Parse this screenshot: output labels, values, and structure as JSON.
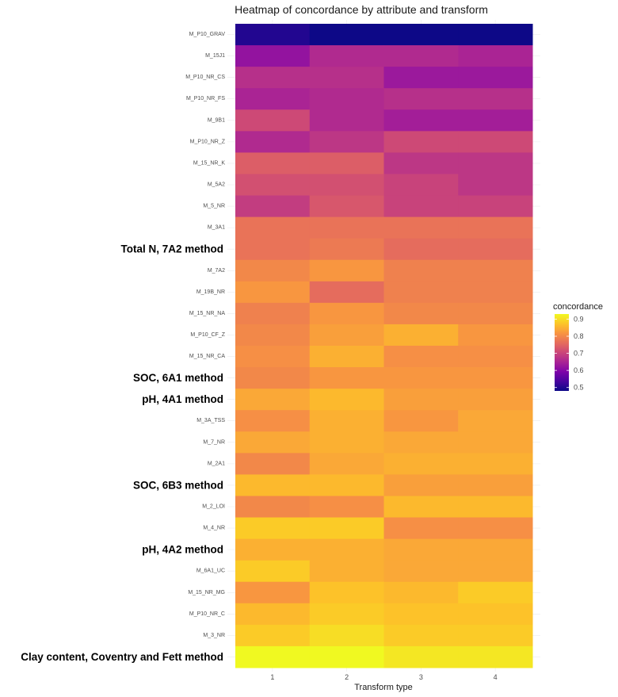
{
  "chart_data": {
    "type": "heatmap",
    "title": "Heatmap of concordance by attribute and transform",
    "xlabel": "Transform type",
    "ylabel": "",
    "x_categories": [
      "1",
      "2",
      "3",
      "4"
    ],
    "y_categories": [
      "M_P10_GRAV",
      "M_15J1",
      "M_P10_NR_CS",
      "M_P10_NR_FS",
      "M_9B1",
      "M_P10_NR_Z",
      "M_15_NR_K",
      "M_5A2",
      "M_5_NR",
      "M_3A1",
      "Total N, 7A2 method",
      "M_7A2",
      "M_19B_NR",
      "M_15_NR_NA",
      "M_P10_CF_Z",
      "M_15_NR_CA",
      "SOC, 6A1 method",
      "pH, 4A1 method",
      "M_3A_TSS",
      "M_7_NR",
      "M_2A1",
      "SOC, 6B3 method",
      "M_2_LOI",
      "M_4_NR",
      "pH, 4A2 method",
      "M_6A1_UC",
      "M_15_NR_MG",
      "M_P10_NR_C",
      "M_3_NR",
      "Clay content, Coventry and Fett method"
    ],
    "highlighted_labels": [
      "Total N, 7A2 method",
      "SOC, 6A1 method",
      "pH, 4A1 method",
      "SOC, 6B3 method",
      "pH, 4A2 method",
      "Clay content, Coventry and Fett method"
    ],
    "values": [
      [
        0.5,
        0.48,
        0.46,
        0.46
      ],
      [
        0.62,
        0.66,
        0.66,
        0.65
      ],
      [
        0.67,
        0.67,
        0.63,
        0.63
      ],
      [
        0.65,
        0.66,
        0.67,
        0.67
      ],
      [
        0.71,
        0.66,
        0.64,
        0.64
      ],
      [
        0.66,
        0.68,
        0.71,
        0.71
      ],
      [
        0.74,
        0.74,
        0.68,
        0.68
      ],
      [
        0.72,
        0.72,
        0.7,
        0.68
      ],
      [
        0.69,
        0.73,
        0.7,
        0.7
      ],
      [
        0.77,
        0.77,
        0.77,
        0.77
      ],
      [
        0.77,
        0.78,
        0.76,
        0.76
      ],
      [
        0.8,
        0.82,
        0.79,
        0.79
      ],
      [
        0.82,
        0.76,
        0.79,
        0.79
      ],
      [
        0.79,
        0.82,
        0.8,
        0.8
      ],
      [
        0.8,
        0.83,
        0.85,
        0.82
      ],
      [
        0.81,
        0.85,
        0.81,
        0.81
      ],
      [
        0.8,
        0.82,
        0.82,
        0.82
      ],
      [
        0.84,
        0.86,
        0.83,
        0.83
      ],
      [
        0.81,
        0.85,
        0.82,
        0.84
      ],
      [
        0.84,
        0.85,
        0.84,
        0.84
      ],
      [
        0.8,
        0.84,
        0.85,
        0.85
      ],
      [
        0.86,
        0.86,
        0.83,
        0.83
      ],
      [
        0.8,
        0.81,
        0.86,
        0.86
      ],
      [
        0.88,
        0.88,
        0.81,
        0.81
      ],
      [
        0.85,
        0.85,
        0.84,
        0.84
      ],
      [
        0.88,
        0.85,
        0.84,
        0.84
      ],
      [
        0.82,
        0.87,
        0.86,
        0.88
      ],
      [
        0.86,
        0.88,
        0.87,
        0.87
      ],
      [
        0.88,
        0.9,
        0.88,
        0.88
      ],
      [
        0.93,
        0.93,
        0.91,
        0.91
      ]
    ],
    "colormap": "plasma",
    "colorbar": {
      "title": "concordance",
      "range": [
        0.48,
        0.93
      ],
      "ticks": [
        0.5,
        0.6,
        0.7,
        0.8,
        0.9
      ]
    },
    "legend_position": "right",
    "grid": true
  }
}
